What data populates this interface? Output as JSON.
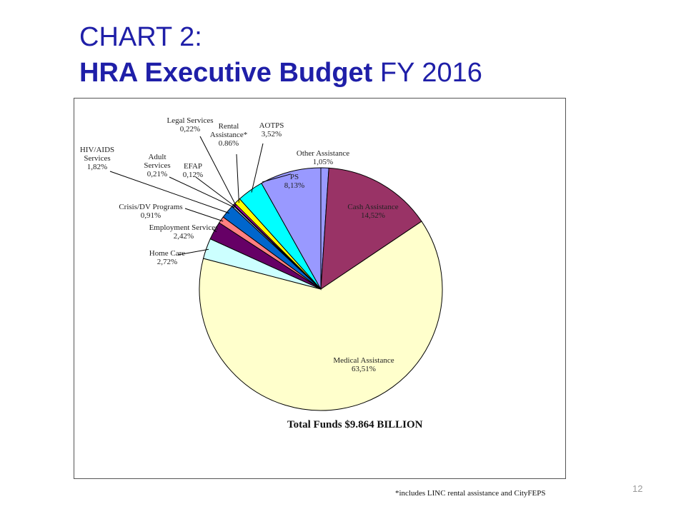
{
  "title": {
    "line1": "CHART 2:",
    "line2_bold": "HRA Executive Budget",
    "line2_normal": "FY 2016"
  },
  "total_label": "Total Funds $9.864 BILLION",
  "footnote": "*includes LINC  rental assistance and CityFEPS",
  "page_number": "12",
  "chart_data": {
    "type": "pie",
    "title": "CHART 2: HRA Executive Budget FY 2016",
    "start": "12 o'clock",
    "direction": "clockwise",
    "slices": [
      {
        "label": "Other Assistance",
        "pct_text": "1,05%",
        "value": 1.05,
        "color": "#9999ff"
      },
      {
        "label": "Cash Assistance",
        "pct_text": "14,52%",
        "value": 14.52,
        "color": "#993366"
      },
      {
        "label": "Medical Assistance",
        "pct_text": "63,51%",
        "value": 63.51,
        "color": "#ffffcc"
      },
      {
        "label": "Home Care",
        "pct_text": "2,72%",
        "value": 2.72,
        "color": "#ccffff"
      },
      {
        "label": "Employment Services",
        "pct_text": "2,42%",
        "value": 2.42,
        "color": "#660066"
      },
      {
        "label": "Crisis/DV Programs",
        "pct_text": "0,91%",
        "value": 0.91,
        "color": "#ff8080"
      },
      {
        "label": "HIV/AIDS Services",
        "pct_text": "1,82%",
        "value": 1.82,
        "color": "#0066cc"
      },
      {
        "label": "Adult Services",
        "pct_text": "0,21%",
        "value": 0.21,
        "color": "#ccccff"
      },
      {
        "label": "EFAP",
        "pct_text": "0,12%",
        "value": 0.12,
        "color": "#000080"
      },
      {
        "label": "Legal Services",
        "pct_text": "0,22%",
        "value": 0.22,
        "color": "#ff00ff"
      },
      {
        "label": "Rental Assistance*",
        "pct_text": "0.86%",
        "value": 0.86,
        "color": "#ffff00"
      },
      {
        "label": "AOTPS",
        "pct_text": "3,52%",
        "value": 3.52,
        "color": "#00ffff"
      },
      {
        "label": "PS",
        "pct_text": "8,13%",
        "value": 8.13,
        "color": "#9999ff"
      }
    ]
  }
}
